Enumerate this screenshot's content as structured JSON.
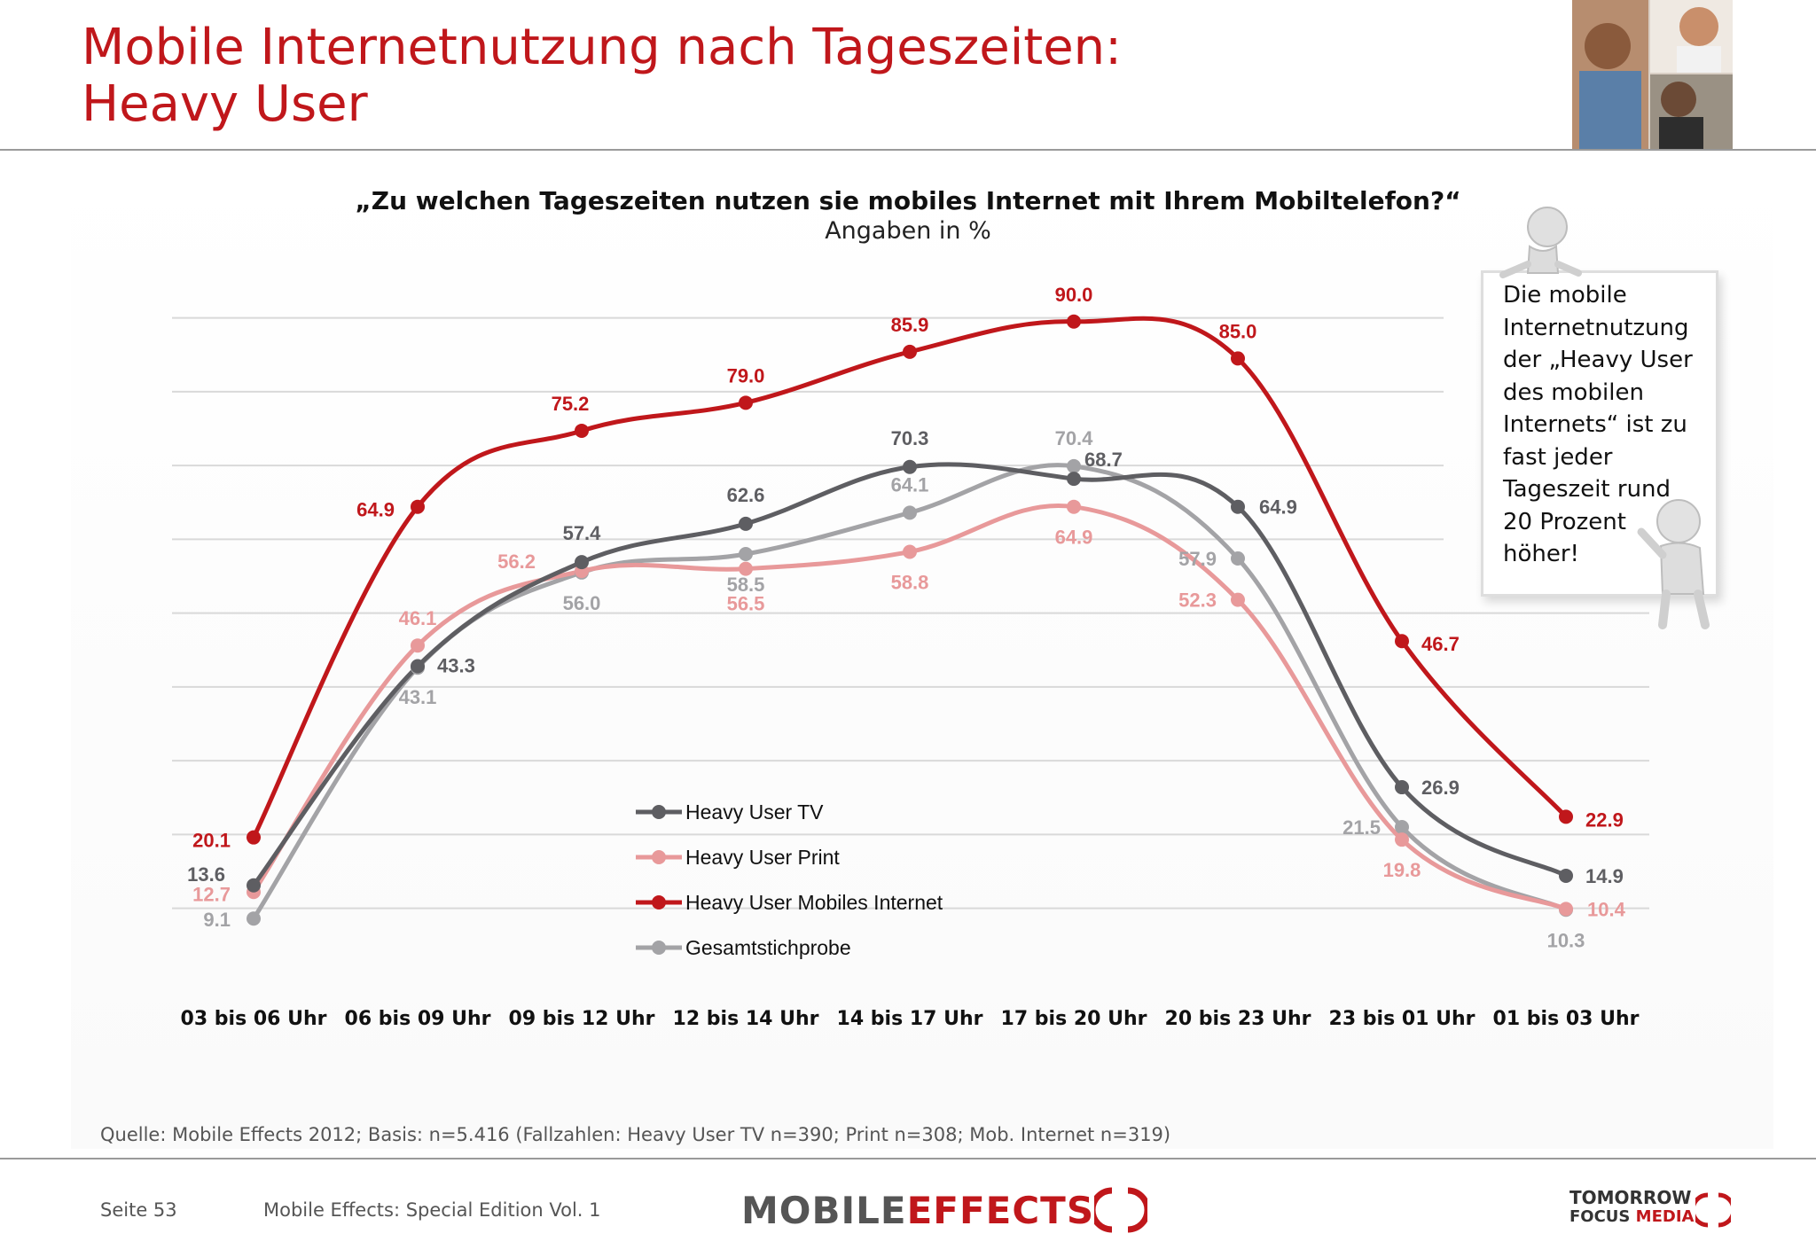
{
  "header": {
    "title_line1": "Mobile Internetnutzung nach Tageszeiten:",
    "title_line2": "Heavy User"
  },
  "chart_meta": {
    "question": "„Zu welchen Tageszeiten nutzen sie mobiles Internet mit Ihrem Mobiltelefon?“",
    "unit": "Angaben in %"
  },
  "callout": {
    "text": "Die mobile\nInternetnutzung\nder „Heavy User\ndes mobilen\nInternets“ ist zu\nfast jeder\nTageszeit rund\n20 Prozent\nhöher!"
  },
  "colors": {
    "tv": "#5e5e62",
    "print": "#e8999a",
    "mobile": "#c0171b",
    "total": "#a3a3a6",
    "grid": "#d9d9d9",
    "brand_red": "#c0171b"
  },
  "chart_data": {
    "type": "line",
    "categories": [
      "03 bis 06 Uhr",
      "06 bis 09 Uhr",
      "09 bis 12 Uhr",
      "12 bis 14 Uhr",
      "14 bis 17 Uhr",
      "17 bis 20 Uhr",
      "20 bis 23 Uhr",
      "23 bis 01 Uhr",
      "01 bis 03 Uhr"
    ],
    "series": [
      {
        "name": "Heavy User TV",
        "key": "tv",
        "values": [
          13.6,
          43.3,
          57.4,
          62.6,
          70.3,
          68.7,
          64.9,
          26.9,
          14.9
        ]
      },
      {
        "name": "Heavy User Print",
        "key": "print",
        "values": [
          12.7,
          46.1,
          56.2,
          56.5,
          58.8,
          64.9,
          52.3,
          19.8,
          10.4
        ]
      },
      {
        "name": "Heavy User Mobiles Internet",
        "key": "mobile",
        "values": [
          20.1,
          64.9,
          75.2,
          79.0,
          85.9,
          90.0,
          85.0,
          46.7,
          22.9
        ]
      },
      {
        "name": "Gesamtstichprobe",
        "key": "total",
        "values": [
          9.1,
          43.1,
          56.0,
          58.5,
          64.1,
          70.4,
          57.9,
          21.5,
          10.3
        ]
      }
    ],
    "labels_tv": [
      "13.6",
      "43.3",
      "57.4",
      "62.6",
      "70.3",
      "68.7",
      "64.9",
      "26.9",
      "14.9"
    ],
    "labels_print": [
      "12.7",
      "46.1",
      "56.2",
      "56.5",
      "58.8",
      "64.9",
      "52.3",
      "19.8",
      "10.4"
    ],
    "labels_mobile": [
      "20.1",
      "64.9",
      "75.2",
      "79.0",
      "85.9",
      "90.0",
      "85.0",
      "46.7",
      "22.9"
    ],
    "labels_total": [
      "9.1",
      "43.1",
      "56.0",
      "58.5",
      "64.1",
      "70.4",
      "57.9",
      "21.5",
      "10.3"
    ],
    "ylim": [
      0,
      100
    ],
    "grid": true,
    "legend_position": "bottom-center-left"
  },
  "footer": {
    "source": "Quelle: Mobile Effects 2012; Basis: n=5.416 (Fallzahlen: Heavy User TV n=390; Print n=308; Mob. Internet n=319)",
    "page": "Seite 53",
    "edition": "Mobile Effects: Special Edition Vol. 1",
    "logo_me_part1": "MOBILE",
    "logo_me_part2": "EFFECTS",
    "logo_tfm_line1": "TOMORROW",
    "logo_tfm_line2_a": "FOCUS",
    "logo_tfm_line2_b": "MEDIA"
  }
}
